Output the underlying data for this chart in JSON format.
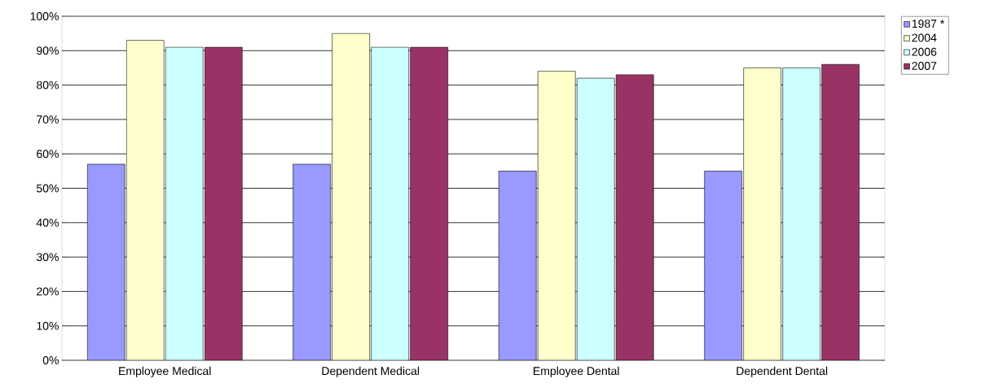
{
  "chart_data": {
    "type": "bar",
    "categories": [
      "Employee Medical",
      "Dependent Medical",
      "Employee Dental",
      "Dependent Dental"
    ],
    "series": [
      {
        "name": "1987 *",
        "color": "#9999ff",
        "values": [
          57,
          57,
          55,
          55
        ]
      },
      {
        "name": "2004",
        "color": "#ffffcc",
        "values": [
          93,
          95,
          84,
          85
        ]
      },
      {
        "name": "2006",
        "color": "#ccffff",
        "values": [
          91,
          91,
          82,
          85
        ]
      },
      {
        "name": "2007",
        "color": "#993366",
        "values": [
          91,
          91,
          83,
          86
        ]
      }
    ],
    "ylim": [
      0,
      100
    ],
    "yticks": [
      {
        "value": 0,
        "label": "0%"
      },
      {
        "value": 10,
        "label": "10%"
      },
      {
        "value": 20,
        "label": "20%"
      },
      {
        "value": 30,
        "label": "30%"
      },
      {
        "value": 40,
        "label": "40%"
      },
      {
        "value": 50,
        "label": "50%"
      },
      {
        "value": 60,
        "label": "60%"
      },
      {
        "value": 70,
        "label": "70%"
      },
      {
        "value": 80,
        "label": "80%"
      },
      {
        "value": 90,
        "label": "90%"
      },
      {
        "value": 100,
        "label": "100%"
      }
    ],
    "grid": "y",
    "legend": "top right"
  }
}
